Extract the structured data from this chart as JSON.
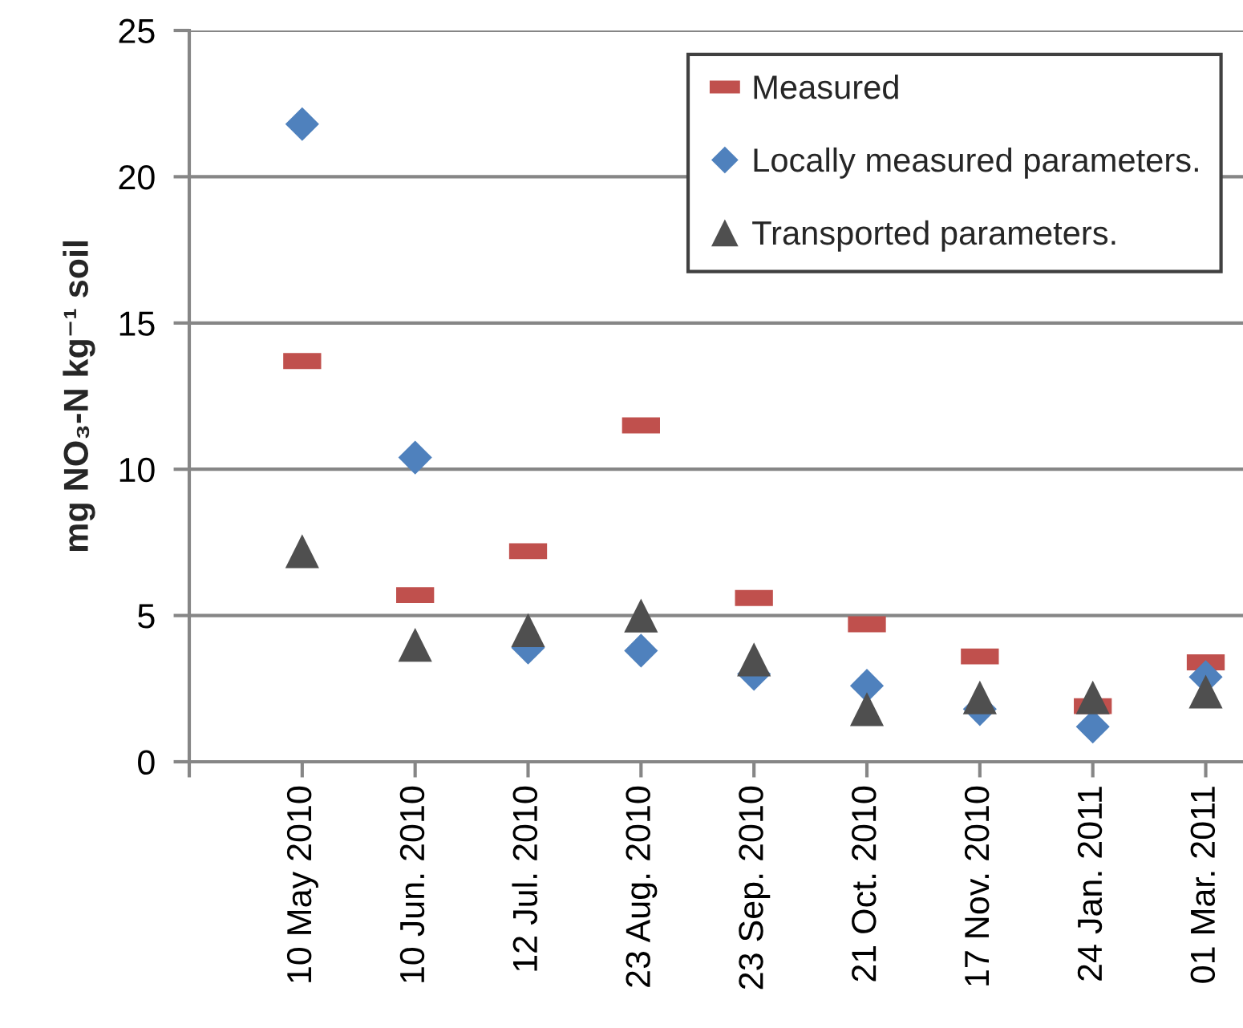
{
  "chart_data": {
    "type": "scatter",
    "ylabel": "mg NO₃-N kg⁻¹ soil",
    "categories": [
      null,
      "10 May 2010",
      "10 Jun. 2010",
      "12 Jul. 2010",
      "23 Aug. 2010",
      "23 Sep. 2010",
      "21 Oct. 2010",
      "17 Nov. 2010",
      "24 Jan. 2011",
      "01 Mar. 2011"
    ],
    "series": [
      {
        "name": "Measured",
        "color": "#c0504d",
        "marker": "square",
        "values": [
          null,
          13.7,
          5.7,
          7.2,
          11.5,
          5.6,
          4.7,
          3.6,
          1.9,
          3.4
        ]
      },
      {
        "name": "Locally measured parameters.",
        "color": "#4f81bd",
        "marker": "diamond",
        "values": [
          null,
          21.8,
          10.4,
          3.9,
          3.8,
          3.0,
          2.6,
          1.8,
          1.2,
          2.9
        ]
      },
      {
        "name": "Transported parameters.",
        "color": "#4f4f4f",
        "marker": "triangle",
        "values": [
          null,
          7.2,
          4.0,
          4.5,
          5.0,
          3.5,
          1.8,
          2.2,
          2.2,
          2.4
        ]
      }
    ],
    "ylim": [
      0,
      25
    ],
    "yticks": [
      0,
      5,
      10,
      15,
      20,
      25
    ],
    "grid": "y",
    "legend": "top right"
  }
}
